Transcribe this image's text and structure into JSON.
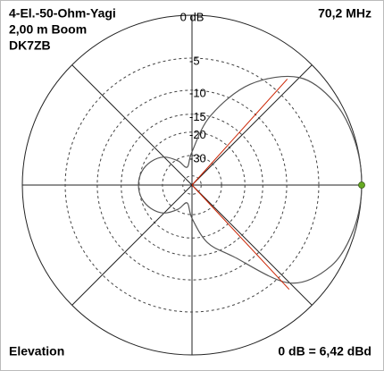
{
  "chart_data": {
    "type": "polar",
    "title_lines": [
      "4-El.-50-Ohm-Yagi",
      "2,00 m Boom",
      "DK7ZB"
    ],
    "frequency": "70,2 MHz",
    "plane": "Elevation",
    "reference": "0 dB = 6,42 dBd",
    "scale": "arrl-log",
    "rlim": [
      -50,
      0
    ],
    "rticks": [
      {
        "value": 0,
        "label": "0 dB"
      },
      -5,
      -10,
      -15,
      -20,
      -30,
      {
        "value": -50,
        "label": null
      }
    ],
    "axis_angles": [
      0,
      45,
      90,
      135
    ],
    "series": [
      {
        "color": "#555555",
        "angles": [
          0,
          15,
          30,
          45,
          60,
          75,
          90,
          105,
          120,
          135,
          150,
          165,
          180,
          195,
          210,
          225,
          240,
          255,
          270,
          285,
          300,
          315,
          330,
          345
        ],
        "values": [
          0,
          -0.1,
          -0.5,
          -1.9,
          -6.5,
          -14.8,
          -28,
          -38,
          -31,
          -25,
          -22,
          -20.3,
          -19.8,
          -20.3,
          -22,
          -25,
          -31,
          -38,
          -28,
          -18,
          -12.4,
          -3.5,
          -0.9,
          -0.2
        ]
      }
    ],
    "beamwidth_markers": {
      "color": "#cc2200",
      "angles": [
        48,
        313
      ],
      "values": [
        -3,
        -3
      ]
    },
    "max_marker": {
      "color": "#66aa22",
      "angle": 0,
      "value": 0
    }
  }
}
